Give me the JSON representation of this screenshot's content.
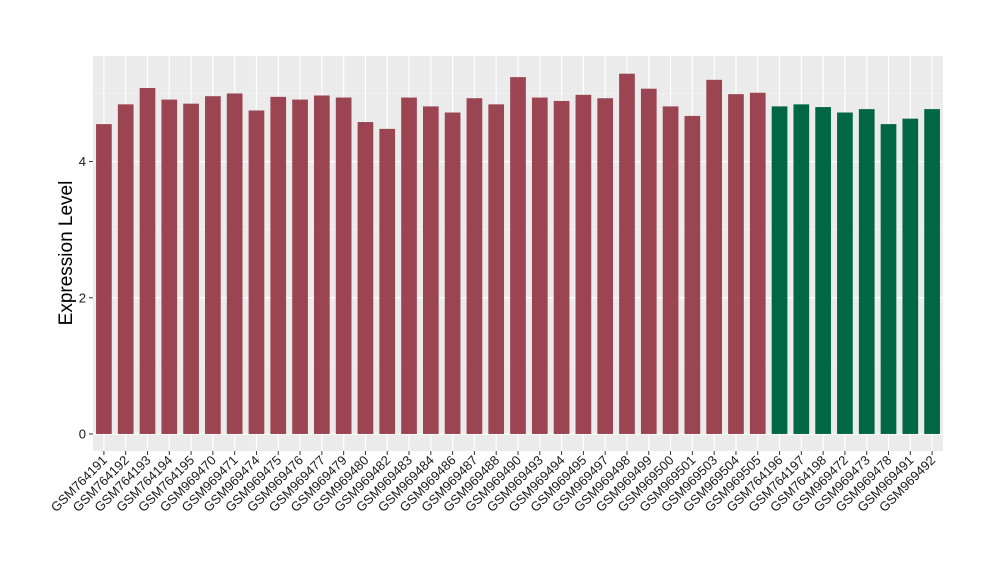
{
  "chart_data": {
    "type": "bar",
    "ylabel": "Expression Level",
    "xlabel": "",
    "ylim": [
      -0.25,
      5.55
    ],
    "yticks": [
      0,
      2,
      4
    ],
    "grid": true,
    "background": "#EBEBEB",
    "colors": {
      "group1": "#9B4452",
      "group2": "#006644"
    },
    "categories": [
      "GSM764191",
      "GSM764192",
      "GSM764193",
      "GSM764194",
      "GSM764195",
      "GSM969470",
      "GSM969471",
      "GSM969474",
      "GSM969475",
      "GSM969476",
      "GSM969477",
      "GSM969479",
      "GSM969480",
      "GSM969482",
      "GSM969483",
      "GSM969484",
      "GSM969486",
      "GSM969487",
      "GSM969488",
      "GSM969490",
      "GSM969493",
      "GSM969494",
      "GSM969495",
      "GSM969497",
      "GSM969498",
      "GSM969499",
      "GSM969500",
      "GSM969501",
      "GSM969503",
      "GSM969504",
      "GSM969505",
      "GSM764196",
      "GSM764197",
      "GSM764198",
      "GSM969472",
      "GSM969473",
      "GSM969478",
      "GSM969491",
      "GSM969492"
    ],
    "values": [
      4.55,
      4.84,
      5.08,
      4.91,
      4.85,
      4.96,
      5.0,
      4.75,
      4.95,
      4.91,
      4.97,
      4.94,
      4.58,
      4.48,
      4.94,
      4.81,
      4.72,
      4.93,
      4.84,
      5.24,
      4.94,
      4.89,
      4.98,
      4.93,
      5.29,
      5.07,
      4.81,
      4.67,
      5.2,
      4.99,
      5.01,
      4.81,
      4.84,
      4.8,
      4.72,
      4.77,
      4.55,
      4.63,
      4.77
    ],
    "groups": [
      "group1",
      "group1",
      "group1",
      "group1",
      "group1",
      "group1",
      "group1",
      "group1",
      "group1",
      "group1",
      "group1",
      "group1",
      "group1",
      "group1",
      "group1",
      "group1",
      "group1",
      "group1",
      "group1",
      "group1",
      "group1",
      "group1",
      "group1",
      "group1",
      "group1",
      "group1",
      "group1",
      "group1",
      "group1",
      "group1",
      "group1",
      "group2",
      "group2",
      "group2",
      "group2",
      "group2",
      "group2",
      "group2",
      "group2"
    ]
  }
}
